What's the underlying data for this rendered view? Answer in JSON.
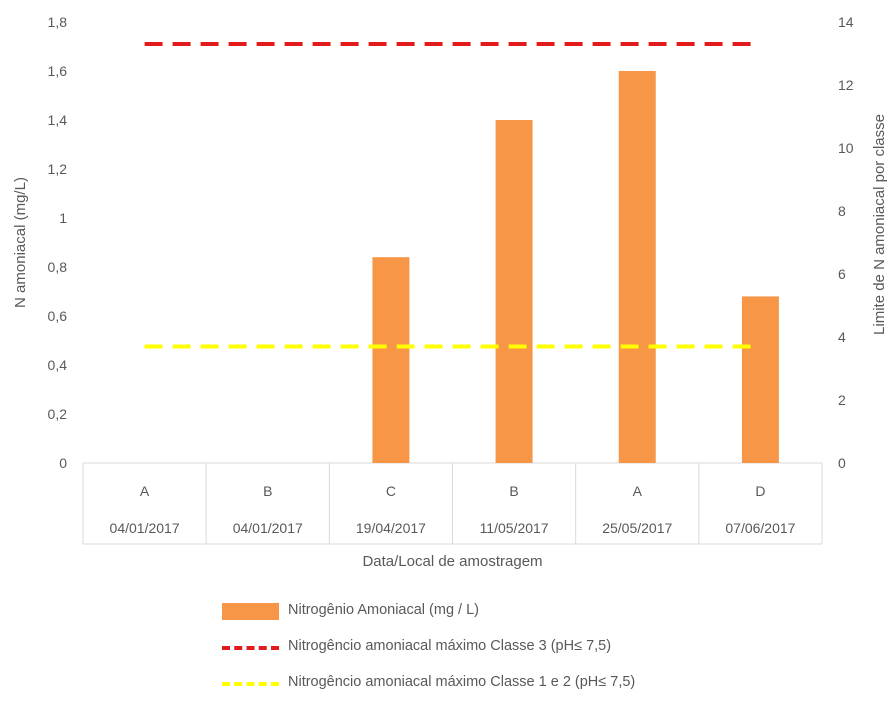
{
  "chart_data": {
    "type": "bar",
    "categories": [
      {
        "local": "A",
        "date": "04/01/2017"
      },
      {
        "local": "B",
        "date": "04/01/2017"
      },
      {
        "local": "C",
        "date": "19/04/2017"
      },
      {
        "local": "B",
        "date": "11/05/2017"
      },
      {
        "local": "A",
        "date": "25/05/2017"
      },
      {
        "local": "D",
        "date": "07/06/2017"
      }
    ],
    "series": [
      {
        "name": "Nitrogênio Amoniacal (mg / L)",
        "type": "bar",
        "axis": "left",
        "values": [
          0,
          0,
          0.84,
          1.4,
          1.6,
          0.68
        ],
        "color": "#f79646"
      },
      {
        "name": "Nitrogêncio amoniacal máximo Classe 3 (pH≤ 7,5)",
        "type": "line",
        "axis": "right",
        "value": 13.3,
        "color": "#e31a1c",
        "style": "dashed"
      },
      {
        "name": "Nitrogêncio amoniacal máximo Classe 1 e 2 (pH≤ 7,5)",
        "type": "line",
        "axis": "right",
        "value": 3.7,
        "color": "#ffff00",
        "style": "dashed"
      }
    ],
    "xlabel": "Data/Local de amostragem",
    "ylabel": "N amoniacal (mg/L)",
    "y2label": "Limite de N amoniacal por classe",
    "ylim": [
      0,
      1.8
    ],
    "y2lim": [
      0,
      14
    ],
    "yticks": [
      "0",
      "0,2",
      "0,4",
      "0,6",
      "0,8",
      "1",
      "1,2",
      "1,4",
      "1,6",
      "1,8"
    ],
    "y2ticks": [
      "0",
      "2",
      "4",
      "6",
      "8",
      "10",
      "12",
      "14"
    ],
    "grid": false,
    "legend_position": "bottom"
  }
}
